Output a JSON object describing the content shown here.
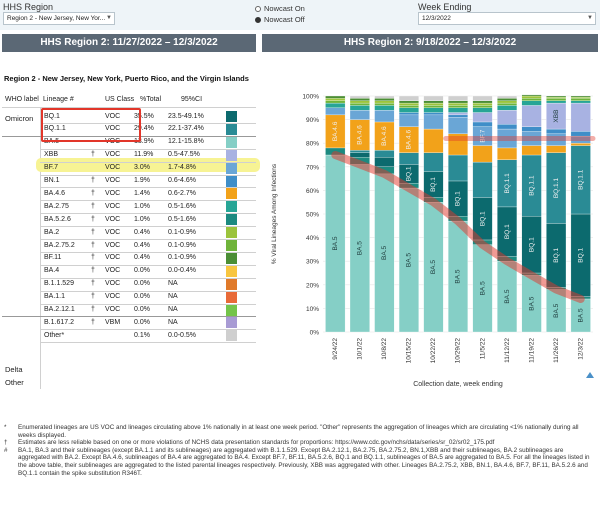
{
  "controls": {
    "region_label": "HHS Region",
    "region_value": "Region 2 - New Jersey, New Yor...",
    "nowcast_on": "Nowcast On",
    "nowcast_off": "Nowcast Off",
    "week_label": "Week Ending",
    "week_value": "12/3/2022"
  },
  "left_panel": {
    "title": "HHS Region 2: 11/27/2022 – 12/3/2022",
    "region_name": "Region 2 - New Jersey, New York, Puerto Rico, and the Virgin Islands",
    "headers": {
      "who": "WHO label",
      "lineage": "Lineage #",
      "class": "US Class",
      "pct": "%Total",
      "ci": "95%CI"
    },
    "groups": {
      "omicron": "Omicron",
      "delta": "Delta",
      "other": "Other"
    },
    "rows": [
      {
        "lineage": "BQ.1",
        "dagger": "",
        "cls": "VOC",
        "pct": "35.5%",
        "ci": "23.5-49.1%",
        "color": "#0c6a6e"
      },
      {
        "lineage": "BQ.1.1",
        "dagger": "",
        "cls": "VOC",
        "pct": "29.4%",
        "ci": "22.1-37.4%",
        "color": "#2a8b95"
      },
      {
        "lineage": "BA.5",
        "dagger": "",
        "cls": "VOC",
        "pct": "13.9%",
        "ci": "12.1-15.8%",
        "color": "#85cfc6"
      },
      {
        "lineage": "XBB",
        "dagger": "†",
        "cls": "VOC",
        "pct": "11.9%",
        "ci": "0.5-47.5%",
        "color": "#a8b2e2"
      },
      {
        "lineage": "BF.7",
        "dagger": "",
        "cls": "VOC",
        "pct": "3.0%",
        "ci": "1.7-4.8%",
        "color": "#6aa6d6"
      },
      {
        "lineage": "BN.1",
        "dagger": "†",
        "cls": "VOC",
        "pct": "1.9%",
        "ci": "0.6-4.6%",
        "color": "#3f8ec8"
      },
      {
        "lineage": "BA.4.6",
        "dagger": "†",
        "cls": "VOC",
        "pct": "1.4%",
        "ci": "0.6-2.7%",
        "color": "#f2a21a"
      },
      {
        "lineage": "BA.2.75",
        "dagger": "†",
        "cls": "VOC",
        "pct": "1.0%",
        "ci": "0.5-1.6%",
        "color": "#27a596"
      },
      {
        "lineage": "BA.5.2.6",
        "dagger": "†",
        "cls": "VOC",
        "pct": "1.0%",
        "ci": "0.5-1.6%",
        "color": "#1c8a80"
      },
      {
        "lineage": "BA.2",
        "dagger": "†",
        "cls": "VOC",
        "pct": "0.4%",
        "ci": "0.1-0.9%",
        "color": "#9cc43c"
      },
      {
        "lineage": "BA.2.75.2",
        "dagger": "†",
        "cls": "VOC",
        "pct": "0.4%",
        "ci": "0.1-0.9%",
        "color": "#6fb43a"
      },
      {
        "lineage": "BF.11",
        "dagger": "†",
        "cls": "VOC",
        "pct": "0.4%",
        "ci": "0.1-0.9%",
        "color": "#4b8e35"
      },
      {
        "lineage": "BA.4",
        "dagger": "†",
        "cls": "VOC",
        "pct": "0.0%",
        "ci": "0.0-0.4%",
        "color": "#f8c640"
      },
      {
        "lineage": "B.1.1.529",
        "dagger": "†",
        "cls": "VOC",
        "pct": "0.0%",
        "ci": "NA",
        "color": "#e07a2a"
      },
      {
        "lineage": "BA.1.1",
        "dagger": "†",
        "cls": "VOC",
        "pct": "0.0%",
        "ci": "NA",
        "color": "#e86a38"
      },
      {
        "lineage": "BA.2.12.1",
        "dagger": "†",
        "cls": "VOC",
        "pct": "0.0%",
        "ci": "NA",
        "color": "#74c44a"
      },
      {
        "lineage": "B.1.617.2",
        "dagger": "†",
        "cls": "VBM",
        "pct": "0.0%",
        "ci": "NA",
        "color": "#a89bd4"
      },
      {
        "lineage": "Other*",
        "dagger": "",
        "cls": "",
        "pct": "0.1%",
        "ci": "0.0-0.5%",
        "color": "#cfcfcf"
      }
    ]
  },
  "right_panel": {
    "title": "HHS Region 2: 9/18/2022 – 12/3/2022"
  },
  "chart_data": {
    "type": "bar",
    "stacked": true,
    "xlabel": "Collection date, week ending",
    "ylabel": "% Viral Lineages Among Infections",
    "ylim": [
      0,
      100
    ],
    "y_ticks": [
      "0%",
      "10%",
      "20%",
      "30%",
      "40%",
      "50%",
      "60%",
      "70%",
      "80%",
      "90%",
      "100%"
    ],
    "categories": [
      "9/24/22",
      "10/1/22",
      "10/8/22",
      "10/15/22",
      "10/22/22",
      "10/29/22",
      "11/5/22",
      "11/12/22",
      "11/19/22",
      "11/26/22",
      "12/3/22"
    ],
    "series": [
      {
        "name": "BA.5",
        "color": "#85cfc6",
        "values": [
          75,
          71,
          67,
          61,
          55,
          47,
          37,
          30,
          24,
          18,
          14
        ]
      },
      {
        "name": "BA.5.2.6",
        "color": "#1c8a80",
        "values": [
          3,
          3,
          3,
          2,
          2,
          2,
          2,
          2,
          1,
          1,
          1
        ]
      },
      {
        "name": "BQ.1",
        "color": "#0c6a6e",
        "values": [
          0,
          2,
          4,
          8,
          11,
          15,
          18,
          21,
          24,
          27,
          35
        ]
      },
      {
        "name": "BQ.1.1",
        "color": "#2a8b95",
        "values": [
          0,
          1,
          3,
          5,
          8,
          11,
          15,
          20,
          26,
          30,
          29
        ]
      },
      {
        "name": "BA.4.6",
        "color": "#f2a21a",
        "values": [
          14,
          13,
          12,
          11,
          10,
          9,
          7,
          5,
          4,
          3,
          1
        ]
      },
      {
        "name": "BF.7",
        "color": "#6aa6d6",
        "values": [
          3,
          4,
          5,
          5,
          6,
          7,
          8,
          8,
          6,
          5,
          3
        ]
      },
      {
        "name": "BN.1",
        "color": "#3f8ec8",
        "values": [
          0,
          0,
          0,
          1,
          1,
          1,
          2,
          2,
          2,
          2,
          2
        ]
      },
      {
        "name": "XBB",
        "color": "#a8b2e2",
        "values": [
          0,
          0,
          0,
          0,
          0,
          1,
          4,
          6,
          9,
          11,
          12
        ]
      },
      {
        "name": "BA.2.75",
        "color": "#27a596",
        "values": [
          2,
          2,
          2,
          2,
          2,
          2,
          2,
          2,
          2,
          1,
          1
        ]
      },
      {
        "name": "BA.2.75.2",
        "color": "#6fb43a",
        "values": [
          1,
          1,
          1,
          1,
          1,
          1,
          1,
          1,
          1,
          1,
          1
        ]
      },
      {
        "name": "BA.2",
        "color": "#9cc43c",
        "values": [
          1,
          1,
          1,
          1,
          1,
          1,
          1,
          1,
          1,
          0.5,
          0.5
        ]
      },
      {
        "name": "BF.11",
        "color": "#4b8e35",
        "values": [
          1,
          1,
          1,
          1,
          1,
          1,
          1,
          1,
          0.5,
          0.5,
          0.5
        ]
      },
      {
        "name": "Other",
        "color": "#cfcfcf",
        "values": [
          0,
          1,
          1,
          2,
          2,
          2,
          2,
          1,
          0,
          0,
          0
        ]
      }
    ],
    "bar_labels": [
      [
        "BA.5",
        "BA.4.6"
      ],
      [
        "BA.5",
        "BA.4.6"
      ],
      [
        "BA.5",
        "BA.4.6"
      ],
      [
        "BA.5",
        "BQ.1",
        "BA.4.6"
      ],
      [
        "BA.5",
        "BQ.1"
      ],
      [
        "BA.5",
        "BQ.1"
      ],
      [
        "BA.5",
        "BQ.1",
        "BF.7"
      ],
      [
        "BA.5",
        "BQ.1",
        "BQ.1.1"
      ],
      [
        "BA.5",
        "BQ.1",
        "BQ.1.1"
      ],
      [
        "BA.5",
        "BQ.1",
        "BQ.1.1",
        "XBB"
      ],
      [
        "BA.5",
        "BQ.1",
        "BQ.1.1"
      ]
    ]
  },
  "footnotes": [
    {
      "mark": "*",
      "text": "Enumerated lineages are US VOC and lineages circulating above 1% nationally in at least one week period. \"Other\" represents the aggregation of lineages which are circulating <1% nationally during all weeks displayed."
    },
    {
      "mark": "†",
      "text": "Estimates are less reliable based on one or more violations of NCHS data presentation standards for proportions: https://www.cdc.gov/nchs/data/series/sr_02/sr02_175.pdf"
    },
    {
      "mark": "#",
      "text": "BA.1, BA.3 and their sublineages (except BA.1.1 and its sublineages) are aggregated with B.1.1.529. Except BA.2.12.1, BA.2.75, BA.2.75.2, BN.1,XBB and their sublineages, BA.2 sublineages are aggregated with BA.2. Except BA.4.6, sublineages of BA.4 are aggregated to BA.4. Except BF.7, BF.11, BA.5.2.6, BQ.1 and BQ.1.1, sublineages of BA.5 are aggregated to BA.5. For all the lineages listed in the above table, their sublineages are aggregated to the listed parental lineages respectively. Previously, XBB was aggregated with other. Lineages BA.2.75.2, XBB, BN.1, BA.4.6, BF.7, BF.11, BA.5.2.6 and BQ.1.1 contain the spike substitution R346T."
    }
  ]
}
